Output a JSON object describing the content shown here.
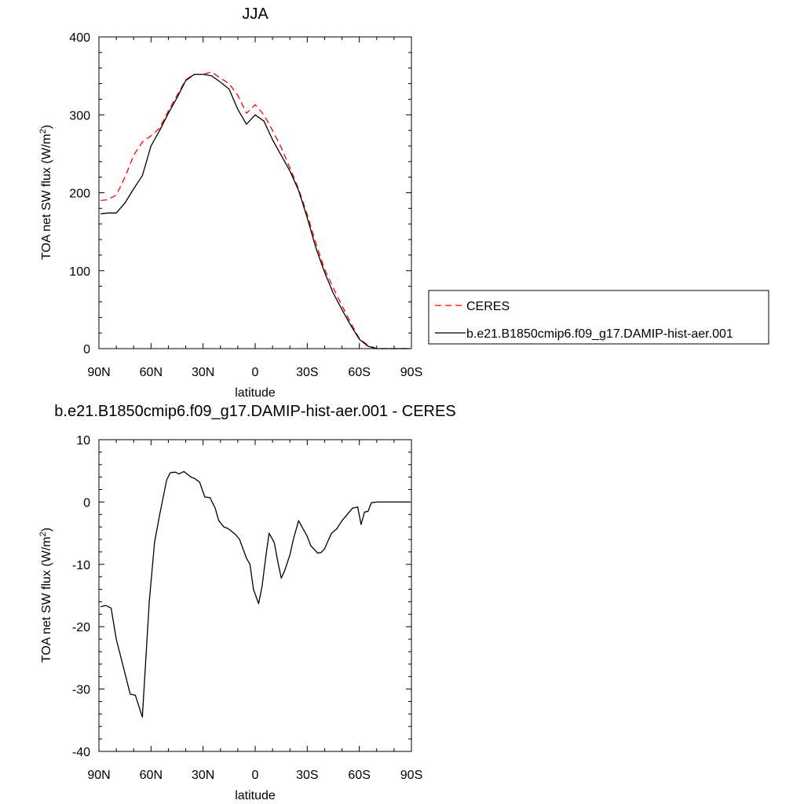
{
  "chart_data": [
    {
      "type": "line",
      "title": "JJA",
      "xlabel": "latitude",
      "ylabel": "TOA net SW flux (W/m²)",
      "ylabel_main": "TOA net SW flux (W/m",
      "ylabel_sup": "2",
      "ylabel_close": ")",
      "xlim": [
        90,
        -90
      ],
      "ylim": [
        0,
        400
      ],
      "grid": false,
      "x_ticks": [
        90,
        60,
        30,
        0,
        -30,
        -60,
        -90
      ],
      "x_tick_labels": [
        "90N",
        "60N",
        "30N",
        "0",
        "30S",
        "60S",
        "90S"
      ],
      "y_ticks": [
        0,
        100,
        200,
        300,
        400
      ],
      "y_tick_labels": [
        "0",
        "100",
        "200",
        "300",
        "400"
      ],
      "legend": {
        "placement": "right",
        "entries": [
          "CERES",
          "b.e21.B1850cmip6.f09_g17.DAMIP-hist-aer.001"
        ]
      },
      "series": [
        {
          "name": "CERES",
          "color": "#ff0000",
          "style": "dashed",
          "x": [
            89,
            85,
            80,
            75,
            70,
            65,
            60,
            55,
            50,
            45,
            40,
            35,
            30,
            25,
            20,
            15,
            10,
            5,
            0,
            -5,
            -10,
            -15,
            -20,
            -25,
            -30,
            -35,
            -40,
            -45,
            -50,
            -55,
            -60,
            -65,
            -70,
            -75,
            -80,
            -85,
            -89
          ],
          "y": [
            190,
            191,
            197,
            220,
            248,
            265,
            273,
            283,
            305,
            325,
            345,
            352,
            352,
            355,
            347,
            340,
            325,
            302,
            313,
            300,
            280,
            258,
            232,
            205,
            172,
            135,
            102,
            78,
            55,
            33,
            13,
            4,
            0,
            0,
            0,
            0,
            0
          ]
        },
        {
          "name": "b.e21.B1850cmip6.f09_g17.DAMIP-hist-aer.001",
          "color": "#000000",
          "style": "solid",
          "x": [
            89,
            85,
            80,
            75,
            70,
            65,
            60,
            55,
            50,
            45,
            40,
            35,
            30,
            25,
            20,
            15,
            10,
            5,
            0,
            -5,
            -10,
            -15,
            -20,
            -25,
            -30,
            -35,
            -40,
            -45,
            -50,
            -55,
            -60,
            -65,
            -70,
            -75,
            -80,
            -85,
            -89
          ],
          "y": [
            173,
            174,
            174,
            187,
            205,
            222,
            260,
            280,
            302,
            322,
            344,
            352,
            352,
            350,
            342,
            333,
            307,
            288,
            300,
            292,
            268,
            248,
            228,
            203,
            168,
            129,
            98,
            71,
            50,
            30,
            12,
            3,
            0,
            0,
            0,
            0,
            0
          ]
        }
      ]
    },
    {
      "type": "line",
      "title": "b.e21.B1850cmip6.f09_g17.DAMIP-hist-aer.001 - CERES",
      "xlabel": "latitude",
      "ylabel": "TOA net SW flux (W/m²)",
      "ylabel_main": "TOA net SW flux (W/m",
      "ylabel_sup": "2",
      "ylabel_close": ")",
      "xlim": [
        90,
        -90
      ],
      "ylim": [
        -40,
        10
      ],
      "grid": false,
      "x_ticks": [
        90,
        60,
        30,
        0,
        -30,
        -60,
        -90
      ],
      "x_tick_labels": [
        "90N",
        "60N",
        "30N",
        "0",
        "30S",
        "60S",
        "90S"
      ],
      "y_ticks": [
        -40,
        -30,
        -20,
        -10,
        0,
        10
      ],
      "y_tick_labels": [
        "-40",
        "-30",
        "-20",
        "-10",
        "0",
        "10"
      ],
      "series": [
        {
          "color": "#000000",
          "style": "solid",
          "x": [
            89,
            86,
            83,
            80,
            75,
            72,
            69,
            65,
            61,
            58,
            55,
            51,
            49,
            46,
            44,
            41,
            37,
            35,
            32,
            29,
            26,
            23,
            21,
            18,
            16,
            14,
            11,
            9,
            7,
            5,
            3,
            1,
            -2,
            -4,
            -6,
            -8,
            -11,
            -13,
            -15,
            -17,
            -20,
            -22,
            -25,
            -27,
            -30,
            -32,
            -34,
            -36,
            -38,
            -40,
            -42,
            -44,
            -47,
            -50,
            -53,
            -56,
            -59,
            -61,
            -63,
            -65,
            -67,
            -70,
            -73,
            -75,
            -80,
            -85,
            -89
          ],
          "y": [
            -16.8,
            -16.6,
            -17.0,
            -22.0,
            -27.5,
            -30.8,
            -31.0,
            -34.5,
            -16.0,
            -6.5,
            -2.0,
            3.5,
            4.7,
            4.8,
            4.5,
            4.9,
            4.0,
            3.8,
            3.2,
            0.8,
            0.7,
            -1.0,
            -3.0,
            -4.0,
            -4.2,
            -4.6,
            -5.3,
            -6.0,
            -7.5,
            -9.0,
            -10.0,
            -14.0,
            -16.3,
            -13.5,
            -9.0,
            -5.0,
            -6.5,
            -9.5,
            -12.2,
            -11.0,
            -8.5,
            -6.0,
            -3.0,
            -4.0,
            -5.5,
            -7.0,
            -7.6,
            -8.2,
            -8.1,
            -7.5,
            -6.2,
            -5.0,
            -4.3,
            -3.0,
            -2.0,
            -1.0,
            -0.8,
            -3.6,
            -1.6,
            -1.5,
            -0.1,
            0.0,
            0.0,
            0.0,
            0.0,
            0.0,
            0.0
          ]
        }
      ]
    }
  ]
}
